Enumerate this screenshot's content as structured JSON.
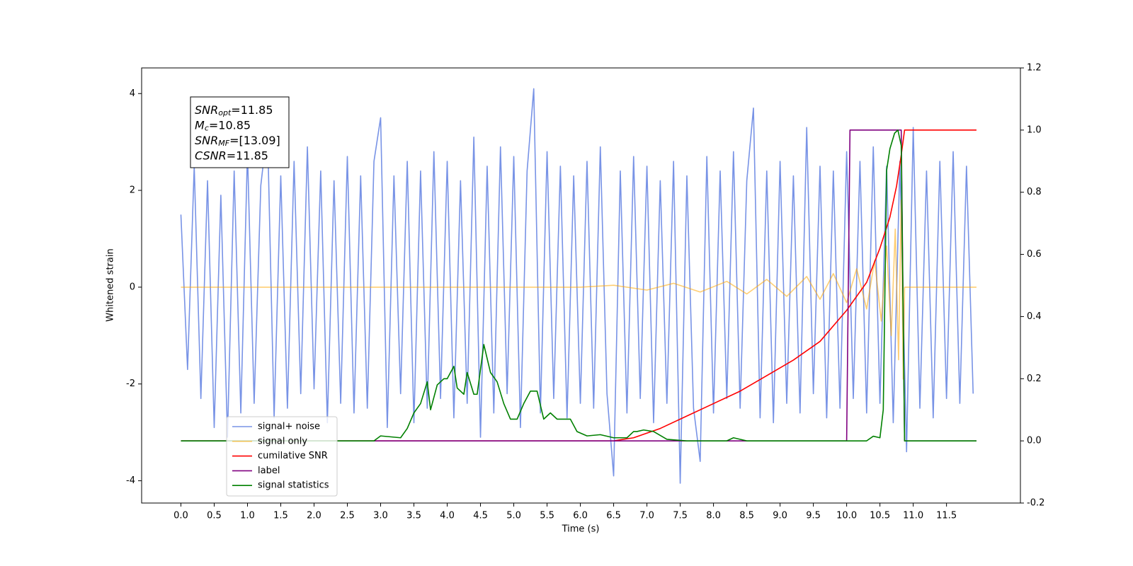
{
  "chart_data": {
    "type": "line",
    "xlabel": "Time (s)",
    "ylabel": "Whitened strain",
    "xlim": [
      -0.59,
      12.61
    ],
    "ylim": [
      -4.46,
      4.53
    ],
    "y2lim": [
      -0.2,
      1.2
    ],
    "xticks": [
      {
        "value": 0,
        "label": "0.0"
      },
      0.5,
      {
        "value": 1,
        "label": "1.0"
      },
      1.5,
      {
        "value": 2,
        "label": "2.0"
      },
      2.5,
      {
        "value": 3,
        "label": "3.0"
      },
      3.5,
      {
        "value": 4,
        "label": "4.0"
      },
      4.5,
      {
        "value": 5,
        "label": "5.0"
      },
      5.5,
      {
        "value": 6,
        "label": "6.0"
      },
      6.5,
      {
        "value": 7,
        "label": "7.0"
      },
      7.5,
      {
        "value": 8,
        "label": "8.0"
      },
      8.5,
      {
        "value": 9,
        "label": "9.0"
      },
      9.5,
      {
        "value": 10,
        "label": "10.0"
      },
      10.5,
      {
        "value": 11,
        "label": "11.0"
      },
      11.5
    ],
    "yticks": [
      -4,
      -2,
      0,
      2,
      4
    ],
    "y2ticks": [
      -0.2,
      {
        "value": 0,
        "label": "0.0"
      },
      0.2,
      0.4,
      0.6,
      0.8,
      {
        "value": 1,
        "label": "1.0"
      },
      1.2
    ],
    "legend": "lower left",
    "annotation": [
      {
        "base": "SNR",
        "sub": "opt",
        "text": "=11.85"
      },
      {
        "base": "M",
        "sub": "c",
        "text": "=10.85"
      },
      {
        "base": "SNR",
        "sub": "MF",
        "text": "=[13.09]"
      },
      {
        "base": "CSNR",
        "sub": null,
        "text": "=11.85"
      }
    ],
    "series": [
      {
        "name": "signal+ noise",
        "color": "#7893e6",
        "alpha": 1,
        "x": [
          0,
          0.1,
          0.2,
          0.3,
          0.4,
          0.5,
          0.6,
          0.7,
          0.8,
          0.9,
          1,
          1.1,
          1.2,
          1.3,
          1.4,
          1.5,
          1.6,
          1.7,
          1.8,
          1.9,
          2,
          2.1,
          2.2,
          2.3,
          2.4,
          2.5,
          2.6,
          2.7,
          2.8,
          2.9,
          3,
          3.1,
          3.2,
          3.3,
          3.4,
          3.5,
          3.6,
          3.7,
          3.8,
          3.9,
          4,
          4.1,
          4.2,
          4.3,
          4.4,
          4.5,
          4.6,
          4.7,
          4.8,
          4.9,
          5,
          5.1,
          5.2,
          5.3,
          5.4,
          5.5,
          5.6,
          5.7,
          5.8,
          5.9,
          6,
          6.1,
          6.2,
          6.3,
          6.4,
          6.5,
          6.6,
          6.7,
          6.8,
          6.9,
          7,
          7.1,
          7.2,
          7.3,
          7.4,
          7.5,
          7.6,
          7.7,
          7.8,
          7.9,
          8,
          8.1,
          8.2,
          8.3,
          8.4,
          8.5,
          8.6,
          8.7,
          8.8,
          8.9,
          9,
          9.1,
          9.2,
          9.3,
          9.4,
          9.5,
          9.6,
          9.7,
          9.8,
          9.9,
          10,
          10.1,
          10.2,
          10.3,
          10.4,
          10.5,
          10.6,
          10.7,
          10.8,
          10.9,
          11,
          11.1,
          11.2,
          11.3,
          11.4,
          11.5,
          11.6,
          11.7,
          11.8,
          11.9
        ],
        "values": [
          1.5,
          -1.7,
          2.5,
          -2.3,
          2.2,
          -2.9,
          1.9,
          -3.1,
          2.4,
          -2.6,
          2.8,
          -2.4,
          2.1,
          3.3,
          -2.7,
          2.3,
          -2.5,
          2.6,
          -2.2,
          2.9,
          -2.1,
          2.4,
          -2.8,
          2.2,
          -2.4,
          2.7,
          -2.6,
          2.3,
          -2.5,
          2.6,
          3.5,
          -2.9,
          2.3,
          -2.2,
          2.6,
          -2.8,
          2.4,
          -2.5,
          2.8,
          -2.3,
          2.6,
          -2.7,
          2.2,
          -2.4,
          3.1,
          -3.1,
          2.5,
          -2.6,
          2.9,
          -2.2,
          2.7,
          -2.9,
          2.4,
          4.1,
          -2.6,
          2.8,
          -2.3,
          2.5,
          -2.7,
          2.3,
          -2.4,
          2.6,
          -2.5,
          2.9,
          -2.2,
          -3.9,
          2.4,
          -2.6,
          2.7,
          -2.3,
          2.5,
          -2.8,
          2.2,
          -2.4,
          2.6,
          -4.05,
          2.3,
          -2.5,
          -3.6,
          2.7,
          -2.6,
          2.4,
          -2.3,
          2.8,
          -2.5,
          2.2,
          3.7,
          -2.7,
          2.4,
          -2.8,
          2.6,
          -2.4,
          2.3,
          -2.6,
          3.3,
          -2.2,
          2.5,
          -2.7,
          2.4,
          -2.5,
          2.8,
          -2.3,
          2.6,
          -2.6,
          2.9,
          -2.4,
          2.5,
          -2.8,
          2.6,
          -3.4,
          3.3,
          -2.5,
          2.4,
          -2.7,
          2.6,
          -2.3,
          2.8,
          -2.4,
          2.5,
          -2.2
        ]
      },
      {
        "name": "signal only",
        "color": "#ffa500",
        "alpha": 0.55,
        "x": [
          0,
          6,
          6.5,
          7,
          7.4,
          7.8,
          8.2,
          8.5,
          8.8,
          9.1,
          9.4,
          9.6,
          9.8,
          10,
          10.15,
          10.3,
          10.42,
          10.52,
          10.6,
          10.67,
          10.73,
          10.78,
          10.82,
          10.85,
          10.87,
          11.95
        ],
        "values": [
          0,
          0,
          0.04,
          -0.06,
          0.08,
          -0.1,
          0.12,
          -0.14,
          0.16,
          -0.19,
          0.22,
          -0.25,
          0.28,
          -0.32,
          0.38,
          -0.45,
          0.55,
          -0.7,
          0.85,
          -1,
          1.2,
          -1.5,
          1.8,
          -1.9,
          0,
          0
        ]
      },
      {
        "name": "cumilative SNR",
        "color": "red",
        "alpha": 1,
        "axis": "y2",
        "x": [
          0,
          6.5,
          6.8,
          7.2,
          7.6,
          8,
          8.4,
          8.8,
          9.2,
          9.6,
          10,
          10.3,
          10.5,
          10.65,
          10.75,
          10.82,
          10.87,
          11.95
        ],
        "values": [
          0,
          0,
          0.01,
          0.04,
          0.08,
          0.12,
          0.16,
          0.21,
          0.26,
          0.32,
          0.42,
          0.51,
          0.62,
          0.72,
          0.82,
          0.92,
          1,
          1
        ]
      },
      {
        "name": "label",
        "color": "purple",
        "alpha": 1,
        "axis": "y2",
        "x": [
          0,
          10,
          10.05,
          10.82,
          10.87,
          11.95
        ],
        "values": [
          0,
          0,
          1,
          1,
          0,
          0
        ]
      },
      {
        "name": "signal statistics",
        "color": "green",
        "alpha": 1,
        "axis": "y2",
        "x": [
          0,
          2.5,
          2.9,
          3,
          3.2,
          3.3,
          3.4,
          3.5,
          3.6,
          3.7,
          3.75,
          3.85,
          3.95,
          4,
          4.1,
          4.15,
          4.25,
          4.3,
          4.4,
          4.45,
          4.55,
          4.65,
          4.75,
          4.85,
          4.95,
          5.05,
          5.15,
          5.25,
          5.35,
          5.45,
          5.55,
          5.65,
          5.75,
          5.85,
          5.95,
          6.1,
          6.3,
          6.5,
          6.7,
          6.8,
          6.85,
          6.95,
          7.1,
          7.3,
          7.6,
          8.2,
          8.3,
          8.5,
          10.3,
          10.4,
          10.5,
          10.55,
          10.6,
          10.65,
          10.72,
          10.77,
          10.82,
          10.87,
          11.95
        ],
        "values": [
          0,
          0,
          0,
          0.016,
          0.012,
          0.01,
          0.04,
          0.09,
          0.12,
          0.19,
          0.1,
          0.18,
          0.2,
          0.2,
          0.24,
          0.17,
          0.15,
          0.22,
          0.15,
          0.15,
          0.31,
          0.22,
          0.19,
          0.12,
          0.07,
          0.07,
          0.12,
          0.16,
          0.16,
          0.07,
          0.09,
          0.07,
          0.07,
          0.07,
          0.03,
          0.016,
          0.02,
          0.01,
          0.01,
          0.03,
          0.03,
          0.035,
          0.03,
          0.005,
          0,
          0,
          0.01,
          0,
          0,
          0.015,
          0.01,
          0.1,
          0.87,
          0.94,
          0.99,
          1,
          0.95,
          0,
          0
        ]
      }
    ]
  }
}
